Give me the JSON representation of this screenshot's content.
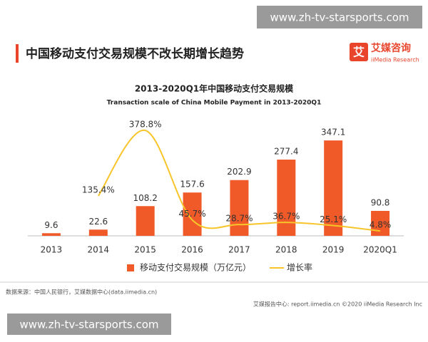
{
  "watermark_top": "www.zh-tv-starsports.com",
  "watermark_bottom": "www.zh-tv-starsports.com",
  "header": {
    "title": "中国移动支付交易规模不改长期增长趋势"
  },
  "logo": {
    "icon": "艾",
    "name": "艾媒咨询",
    "sub": "iiMedia Research"
  },
  "chart_data": {
    "type": "bar",
    "title": "2013-2020Q1年中国移动支付交易规模",
    "subtitle": "Transaction scale of China Mobile Payment in 2013-2020Q1",
    "categories": [
      "2013",
      "2014",
      "2015",
      "2016",
      "2017",
      "2018",
      "2019",
      "2020Q1"
    ],
    "series": [
      {
        "name": "移动支付交易规模（万亿元）",
        "type": "bar",
        "color": "#f05a28",
        "values": [
          9.6,
          22.6,
          108.2,
          157.6,
          202.9,
          277.4,
          347.1,
          90.8
        ]
      },
      {
        "name": "增长率",
        "type": "line",
        "axis": "y2",
        "color": "#f7c52a",
        "values": [
          null,
          135.4,
          378.8,
          45.7,
          28.7,
          36.7,
          25.1,
          4.8
        ],
        "value_labels": [
          null,
          "135.4%",
          "378.8%",
          "45.7%",
          "28.7%",
          "36.7%",
          "25.1%",
          "4.8%"
        ]
      }
    ],
    "ylim": [
      0,
      350
    ],
    "y2lim": [
      0,
      400
    ],
    "legend": "bottom"
  },
  "source": "数据来源：中国人民银行，艾媒数据中心(data.iimedia.cn)",
  "footer": "艾媒报告中心: report.iimedia.cn   ©2020  iiMedia Research  Inc"
}
